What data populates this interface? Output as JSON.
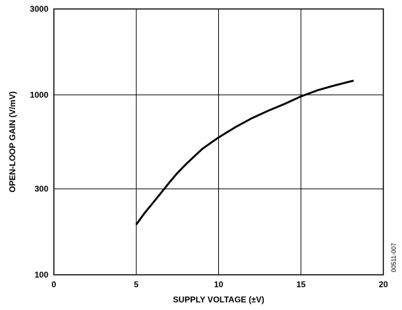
{
  "chart_data": {
    "type": "line",
    "xlabel": "SUPPLY VOLTAGE (±V)",
    "ylabel": "OPEN-LOOP GAIN (V/mV)",
    "xlim": [
      0,
      20
    ],
    "ylim": [
      100,
      3000
    ],
    "yscale": "log",
    "grid": true,
    "x_ticks": [
      0,
      5,
      10,
      15,
      20
    ],
    "x_tick_labels": [
      "0",
      "5",
      "10",
      "15",
      "20"
    ],
    "y_ticks": [
      100,
      300,
      1000,
      3000
    ],
    "y_tick_labels": [
      "100",
      "300",
      "1000",
      "3000"
    ],
    "series": [
      {
        "x": [
          5,
          5.5,
          6,
          6.5,
          7,
          7.5,
          8,
          9,
          10,
          11,
          12,
          13,
          14,
          15,
          16,
          17,
          18.2
        ],
        "y": [
          190,
          220,
          250,
          285,
          325,
          368,
          410,
          500,
          580,
          660,
          740,
          815,
          890,
          980,
          1060,
          1125,
          1200
        ]
      }
    ],
    "figure_id": "00511-007"
  }
}
